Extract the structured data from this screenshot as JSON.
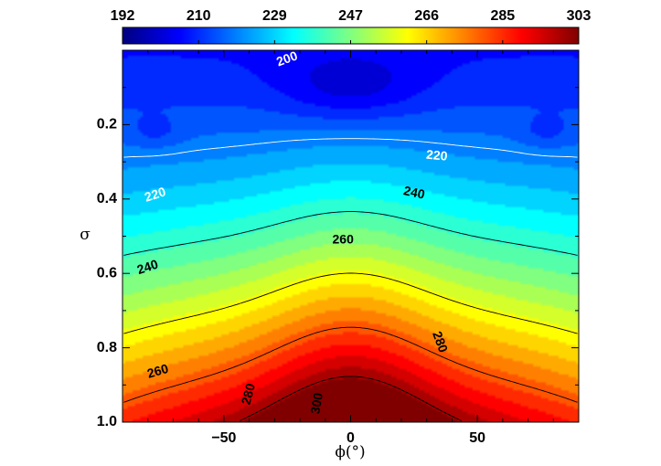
{
  "chart_data": {
    "type": "heatmap",
    "title": "",
    "xlabel": "ϕ(°)",
    "ylabel": "σ",
    "xlim": [
      -90,
      90
    ],
    "ylim": [
      0.0,
      1.0
    ],
    "y_reversed": true,
    "x_ticks": [
      -50,
      0,
      50
    ],
    "x_tick_labels": [
      "−50",
      "0",
      "50"
    ],
    "y_ticks": [
      0.2,
      0.4,
      0.6,
      0.8,
      1.0
    ],
    "y_tick_labels": [
      "0.2",
      "0.4",
      "0.6",
      "0.8",
      "1.0"
    ],
    "colorbar": {
      "range": [
        192,
        303
      ],
      "tick_labels": [
        "192",
        "210",
        "229",
        "247",
        "266",
        "285",
        "303"
      ],
      "colormap": "jet"
    },
    "contour_levels": [
      200,
      220,
      240,
      260,
      280,
      300
    ],
    "contour_labels": [
      {
        "text": "200",
        "x": -25,
        "y": 0.025,
        "color": "#ffffff",
        "angle": -20
      },
      {
        "text": "220",
        "x": 34,
        "y": 0.285,
        "color": "#ffffff",
        "angle": 5
      },
      {
        "text": "220",
        "x": -77,
        "y": 0.39,
        "color": "#ffffff",
        "angle": -18
      },
      {
        "text": "240",
        "x": 25,
        "y": 0.385,
        "color": "#000000",
        "angle": 12
      },
      {
        "text": "240",
        "x": -80,
        "y": 0.585,
        "color": "#000000",
        "angle": -18
      },
      {
        "text": "260",
        "x": -3,
        "y": 0.51,
        "color": "#000000",
        "angle": 0
      },
      {
        "text": "260",
        "x": -76,
        "y": 0.865,
        "color": "#000000",
        "angle": -16
      },
      {
        "text": "280",
        "x": 35,
        "y": 0.785,
        "color": "#000000",
        "angle": 70
      },
      {
        "text": "280",
        "x": -40,
        "y": 0.925,
        "color": "#000000",
        "angle": -75
      },
      {
        "text": "300",
        "x": -13,
        "y": 0.95,
        "color": "#000000",
        "angle": -80
      }
    ]
  }
}
